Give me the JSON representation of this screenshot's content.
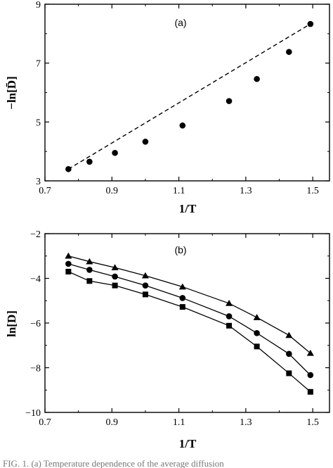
{
  "chart_data": [
    {
      "type": "scatter",
      "panel_label": "(a)",
      "xlabel": "1/T",
      "ylabel": "−ln[D̄]",
      "xlim": [
        0.7,
        1.55
      ],
      "ylim": [
        3,
        9
      ],
      "xticks": [
        "0.7",
        "0.9",
        "1.1",
        "1.3",
        "1.5"
      ],
      "yticks": [
        "3",
        "5",
        "7",
        "9"
      ],
      "grid": false,
      "series": [
        {
          "style": "points",
          "marker": "circle",
          "x": [
            0.77,
            0.833,
            0.909,
            1.0,
            1.111,
            1.25,
            1.333,
            1.429,
            1.493
          ],
          "y": [
            3.4,
            3.65,
            3.95,
            4.33,
            4.88,
            5.71,
            6.46,
            7.38,
            8.33
          ]
        },
        {
          "style": "dashed-line",
          "x": [
            0.77,
            1.493
          ],
          "y": [
            3.4,
            8.33
          ]
        }
      ]
    },
    {
      "type": "line",
      "panel_label": "(b)",
      "xlabel": "1/T",
      "ylabel": "ln[D]",
      "xlim": [
        0.7,
        1.55
      ],
      "ylim": [
        -10,
        -2
      ],
      "xticks": [
        "0.7",
        "0.9",
        "1.1",
        "1.3",
        "1.5"
      ],
      "yticks": [
        "−2",
        "−4",
        "−6",
        "−8",
        "−10"
      ],
      "grid": false,
      "x": [
        0.77,
        0.833,
        0.909,
        1.0,
        1.111,
        1.25,
        1.333,
        1.429,
        1.493
      ],
      "series": [
        {
          "marker": "triangle",
          "values": [
            -3.0,
            -3.25,
            -3.52,
            -3.88,
            -4.38,
            -5.12,
            -5.75,
            -6.55,
            -7.35
          ]
        },
        {
          "marker": "circle",
          "values": [
            -3.35,
            -3.62,
            -3.92,
            -4.32,
            -4.88,
            -5.7,
            -6.45,
            -7.38,
            -8.33
          ]
        },
        {
          "marker": "square",
          "values": [
            -3.7,
            -4.12,
            -4.32,
            -4.72,
            -5.28,
            -6.12,
            -7.05,
            -8.25,
            -9.08
          ]
        }
      ]
    }
  ],
  "caption": "FIG. 1. (a) Temperature dependence of the average diffusion"
}
